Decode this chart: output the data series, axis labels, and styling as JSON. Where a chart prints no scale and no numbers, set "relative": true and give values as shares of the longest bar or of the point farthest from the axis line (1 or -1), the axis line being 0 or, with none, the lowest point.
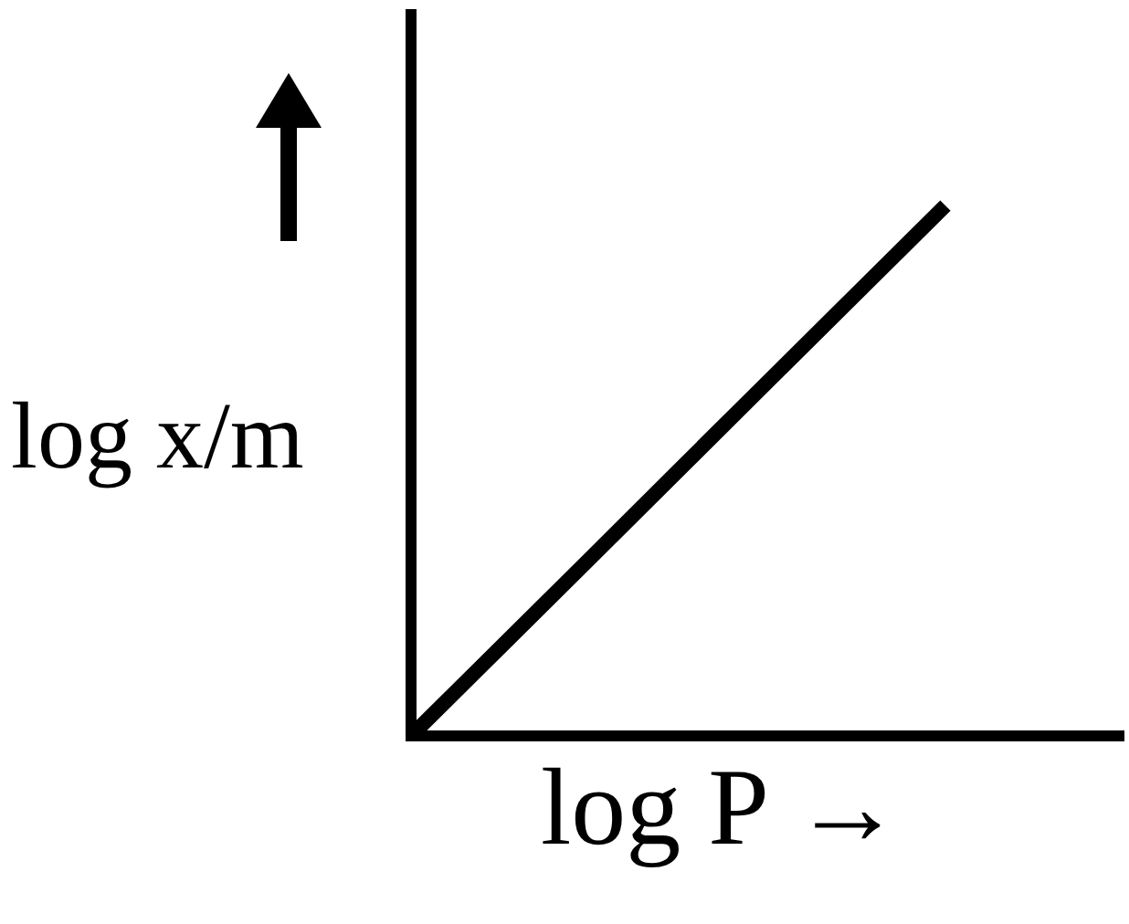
{
  "chart_data": {
    "type": "line",
    "relative": true,
    "xlabel": "log P →",
    "ylabel": "log x/m",
    "categories": [
      null,
      null,
      null,
      null,
      null
    ],
    "values": [
      0,
      0.333,
      0.667,
      1,
      null
    ],
    "color": "#000000",
    "marker": "none",
    "line_style": "solid"
  }
}
